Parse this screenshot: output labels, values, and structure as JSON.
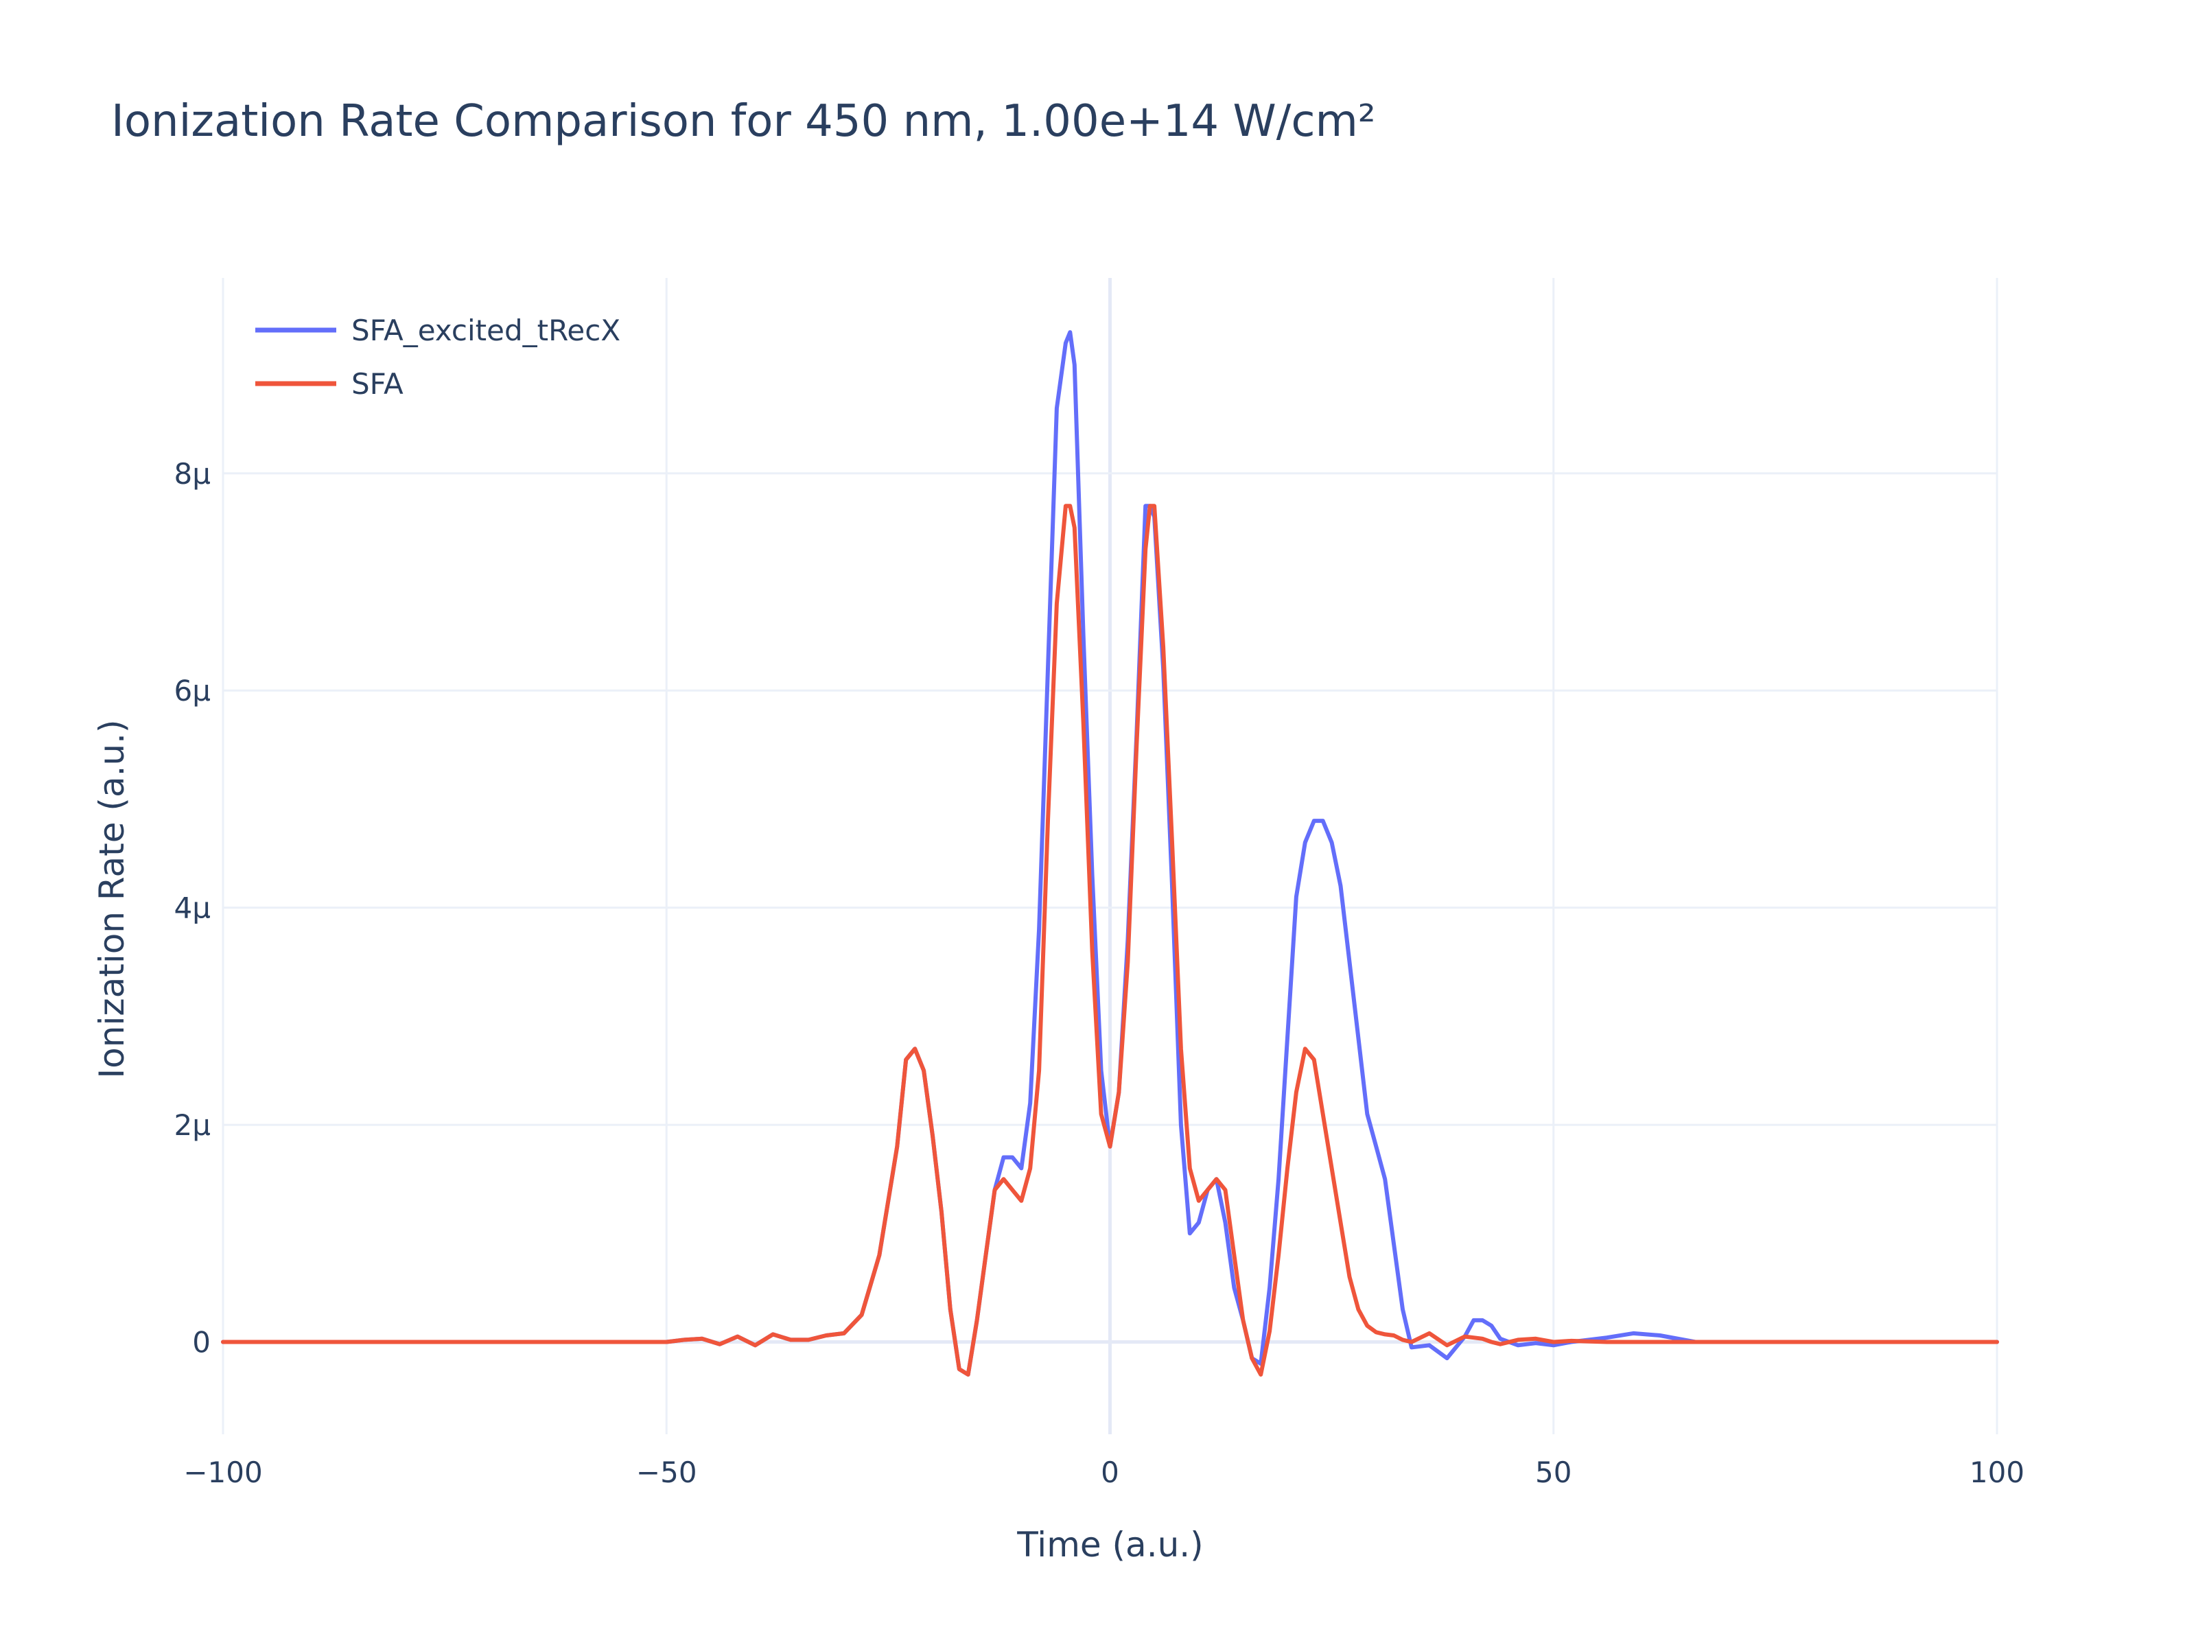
{
  "chart_data": {
    "type": "line",
    "title": "Ionization Rate Comparison for 450 nm, 1.00e+14 W/cm²",
    "xlabel": "Time (a.u.)",
    "ylabel": "Ionization Rate (a.u.)",
    "xlim": [
      -100,
      100
    ],
    "ylim": [
      -8.5e-07,
      9.8e-06
    ],
    "x_ticks": [
      -100,
      -50,
      0,
      50,
      100
    ],
    "x_tick_labels": [
      "−100",
      "−50",
      "0",
      "50",
      "100"
    ],
    "y_ticks": [
      0,
      2e-06,
      4e-06,
      6e-06,
      8e-06
    ],
    "y_tick_labels": [
      "0",
      "2μ",
      "4μ",
      "6μ",
      "8μ"
    ],
    "grid": true,
    "legend_position": "top-left",
    "colors": {
      "grid": "#ebf0f8",
      "zeroline": "#ebf0f8",
      "text": "#2a3f5f"
    },
    "series": [
      {
        "name": "SFA_excited_tRecX",
        "color": "#636efa",
        "x": [
          -100,
          -70,
          -50,
          -48,
          -46,
          -44,
          -42,
          -40,
          -38,
          -36,
          -34,
          -32,
          -30,
          -28,
          -26,
          -24,
          -23,
          -22,
          -21,
          -20,
          -19,
          -18,
          -17,
          -16,
          -15,
          -14,
          -13,
          -12,
          -11,
          -10,
          -9,
          -8,
          -7,
          -6,
          -5,
          -4.5,
          -4,
          -3,
          -2,
          -1,
          0,
          1,
          2,
          3,
          4,
          4.5,
          5,
          6,
          7,
          8,
          9,
          10,
          11,
          12,
          13,
          14,
          15,
          16,
          17,
          18,
          19,
          20,
          21,
          22,
          23,
          24,
          25,
          26,
          27,
          28,
          29,
          30,
          31,
          32,
          33,
          34,
          36,
          38,
          40,
          41,
          42,
          43,
          44,
          46,
          48,
          50,
          52,
          56,
          59,
          62,
          66,
          70,
          80,
          90,
          100
        ],
        "y": [
          0,
          0,
          0,
          2e-08,
          3e-08,
          -2e-08,
          5e-08,
          -3e-08,
          7e-08,
          2e-08,
          2e-08,
          6e-08,
          8e-08,
          2.5e-07,
          8e-07,
          1.8e-06,
          2.6e-06,
          2.7e-06,
          2.5e-06,
          1.9e-06,
          1.2e-06,
          3e-07,
          -2.5e-07,
          -3e-07,
          2e-07,
          8e-07,
          1.4e-06,
          1.7e-06,
          1.7e-06,
          1.6e-06,
          2.2e-06,
          3.8e-06,
          6.2e-06,
          8.6e-06,
          9.2e-06,
          9.3e-06,
          9e-06,
          6.5e-06,
          4.3e-06,
          2.5e-06,
          1.8e-06,
          2.3e-06,
          3.7e-06,
          5.6e-06,
          7.7e-06,
          7.7e-06,
          7.6e-06,
          6.2e-06,
          4.2e-06,
          2e-06,
          1e-06,
          1.1e-06,
          1.4e-06,
          1.5e-06,
          1.1e-06,
          5e-07,
          2e-07,
          -1.5e-07,
          -2e-07,
          5e-07,
          1.5e-06,
          2.8e-06,
          4.1e-06,
          4.6e-06,
          4.8e-06,
          4.8e-06,
          4.6e-06,
          4.2e-06,
          3.5e-06,
          2.8e-06,
          2.1e-06,
          1.8e-06,
          1.5e-06,
          9e-07,
          3e-07,
          -5e-08,
          -3e-08,
          -1.5e-07,
          5e-08,
          2e-07,
          2e-07,
          1.5e-07,
          3e-08,
          -3e-08,
          -1e-08,
          -3e-08,
          0,
          4e-08,
          8e-08,
          6e-08,
          0,
          0,
          0,
          0,
          0
        ]
      },
      {
        "name": "SFA",
        "color": "#ef553b",
        "x": [
          -100,
          -70,
          -50,
          -48,
          -46,
          -44,
          -42,
          -40,
          -38,
          -36,
          -34,
          -32,
          -30,
          -28,
          -26,
          -24,
          -23,
          -22,
          -21,
          -20,
          -19,
          -18,
          -17,
          -16,
          -15,
          -14,
          -13,
          -12,
          -11,
          -10,
          -9,
          -8,
          -7,
          -6,
          -5,
          -4.5,
          -4,
          -3,
          -2,
          -1,
          0,
          1,
          2,
          3,
          4,
          4.5,
          5,
          6,
          7,
          8,
          9,
          10,
          11,
          12,
          13,
          14,
          15,
          16,
          17,
          18,
          19,
          20,
          21,
          22,
          23,
          24,
          25,
          26,
          27,
          28,
          29,
          30,
          31,
          32,
          33,
          34,
          36,
          38,
          40,
          41,
          42,
          43,
          44,
          46,
          48,
          50,
          52,
          56,
          59,
          62,
          66,
          70,
          80,
          90,
          100
        ],
        "y": [
          0,
          0,
          0,
          2e-08,
          3e-08,
          -2e-08,
          5e-08,
          -3e-08,
          7e-08,
          2e-08,
          2e-08,
          6e-08,
          8e-08,
          2.5e-07,
          8e-07,
          1.8e-06,
          2.6e-06,
          2.7e-06,
          2.5e-06,
          1.9e-06,
          1.2e-06,
          3e-07,
          -2.5e-07,
          -3e-07,
          2e-07,
          8e-07,
          1.4e-06,
          1.5e-06,
          1.4e-06,
          1.3e-06,
          1.6e-06,
          2.5e-06,
          4.8e-06,
          6.8e-06,
          7.7e-06,
          7.7e-06,
          7.5e-06,
          5.7e-06,
          3.6e-06,
          2.1e-06,
          1.8e-06,
          2.3e-06,
          3.5e-06,
          5.5e-06,
          7.3e-06,
          7.7e-06,
          7.7e-06,
          6.4e-06,
          4.6e-06,
          2.7e-06,
          1.6e-06,
          1.3e-06,
          1.4e-06,
          1.5e-06,
          1.4e-06,
          8e-07,
          2e-07,
          -1.5e-07,
          -3e-07,
          1e-07,
          8e-07,
          1.6e-06,
          2.3e-06,
          2.7e-06,
          2.6e-06,
          2.1e-06,
          1.6e-06,
          1.1e-06,
          6e-07,
          3e-07,
          1.5e-07,
          9e-08,
          7e-08,
          6e-08,
          2e-08,
          0,
          8e-08,
          -3e-08,
          5e-08,
          4e-08,
          3e-08,
          0,
          -2e-08,
          2e-08,
          3e-08,
          0,
          1e-08,
          0,
          0,
          0,
          0,
          0,
          0,
          0,
          0
        ]
      }
    ]
  }
}
